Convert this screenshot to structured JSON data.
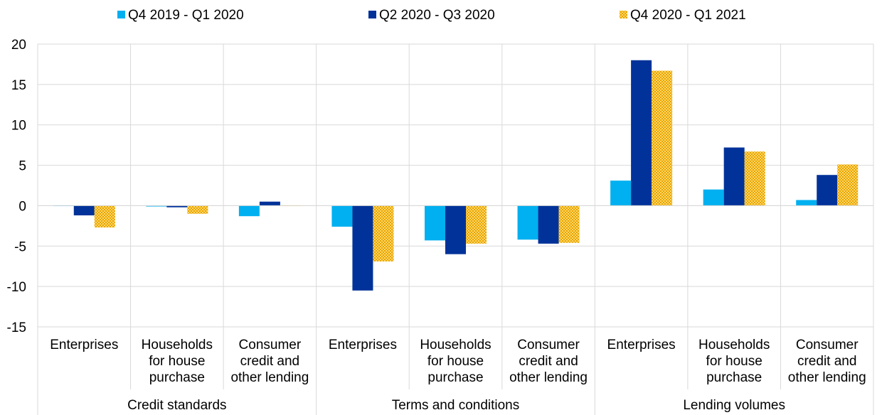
{
  "chart_data": {
    "type": "bar",
    "title": "",
    "xlabel": "",
    "ylabel": "",
    "ylim": [
      -15,
      20
    ],
    "yticks": [
      20,
      15,
      10,
      5,
      0,
      -5,
      -10,
      -15
    ],
    "grid": true,
    "legend_position": "top",
    "groups": [
      {
        "label": "Credit standards",
        "categories": [
          "Enterprises",
          "Households for house purchase",
          "Consumer credit and other lending"
        ]
      },
      {
        "label": "Terms and conditions",
        "categories": [
          "Enterprises",
          "Households for house purchase",
          "Consumer credit and other lending"
        ]
      },
      {
        "label": "Lending volumes",
        "categories": [
          "Enterprises",
          "Households for house purchase",
          "Consumer credit and other lending"
        ]
      }
    ],
    "category_lines": [
      [
        "Enterprises"
      ],
      [
        "Households",
        "for house",
        "purchase"
      ],
      [
        "Consumer",
        "credit and",
        "other lending"
      ]
    ],
    "series": [
      {
        "name": "Q4 2019 - Q1 2020",
        "color": "#00b0f0",
        "pattern": "solid",
        "values": [
          0.0,
          -0.1,
          -1.3,
          -2.6,
          -4.3,
          -4.2,
          3.1,
          2.0,
          0.7
        ]
      },
      {
        "name": "Q2 2020 - Q3 2020",
        "color": "#003299",
        "pattern": "solid",
        "values": [
          -1.2,
          -0.2,
          0.5,
          -10.5,
          -6.0,
          -4.7,
          18.0,
          7.2,
          3.8
        ]
      },
      {
        "name": "Q4 2020 - Q1 2021",
        "color": "#ffb400",
        "pattern": "dotted",
        "values": [
          -2.7,
          -1.0,
          0.0,
          -6.9,
          -4.7,
          -4.6,
          16.7,
          6.7,
          5.1
        ]
      }
    ]
  }
}
